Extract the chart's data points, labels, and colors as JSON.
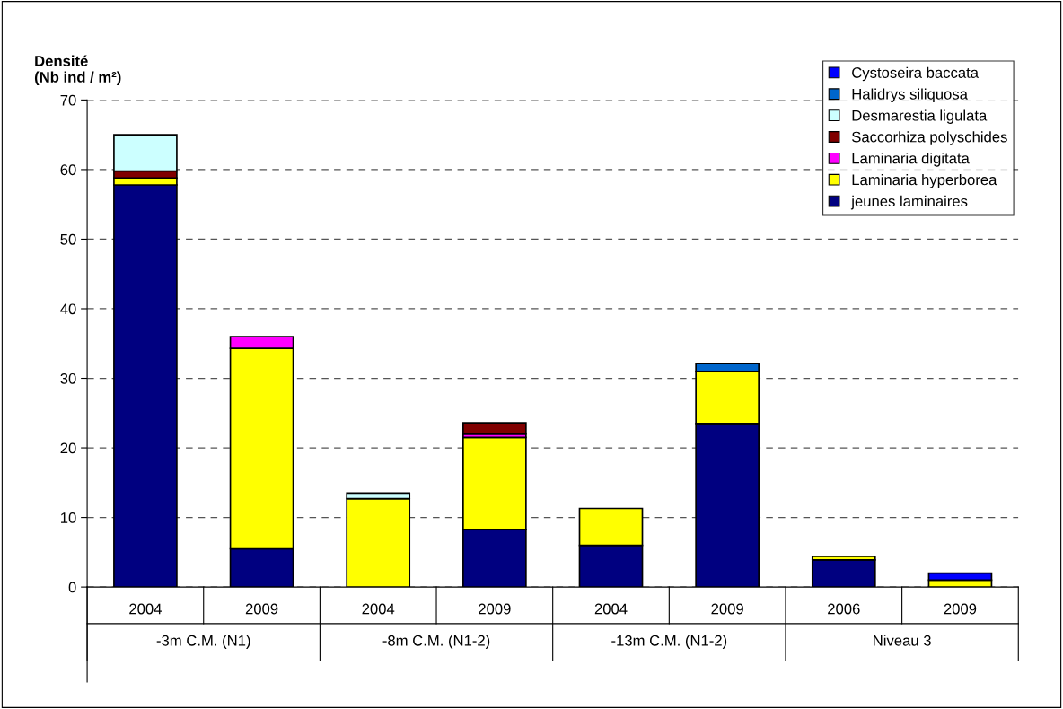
{
  "chart_data": {
    "type": "bar",
    "stacked": true,
    "ylabel": "Densité\n(Nb ind / m²)",
    "categories": [
      "2004",
      "2009",
      "2004",
      "2009",
      "2004",
      "2009",
      "2006",
      "2009"
    ],
    "annotations": [
      "-3m C.M. (N1)",
      "-8m C.M. (N1-2)",
      "-13m C.M. (N1-2)",
      "Niveau 3"
    ],
    "series": [
      {
        "name": "jeunes laminaires",
        "color": "#000080",
        "values": [
          57.8,
          5.5,
          0,
          8.3,
          6,
          23.5,
          3.9,
          0
        ]
      },
      {
        "name": "Laminaria hyperborea",
        "color": "#ffff00",
        "values": [
          1,
          28.8,
          12.7,
          13.2,
          5.3,
          7.5,
          0.5,
          1
        ]
      },
      {
        "name": "Laminaria digitata",
        "color": "#ff00ff",
        "values": [
          0,
          1.7,
          0,
          0.5,
          0,
          0,
          0,
          0
        ]
      },
      {
        "name": "Saccorhiza polyschides",
        "color": "#800000",
        "values": [
          1,
          0,
          0,
          1.6,
          0,
          0,
          0,
          0
        ]
      },
      {
        "name": "Desmarestia ligulata",
        "color": "#ccffff",
        "values": [
          5.2,
          0,
          0.8,
          0,
          0,
          0,
          0,
          0
        ]
      },
      {
        "name": "Halidrys siliquosa",
        "color": "#0066cc",
        "values": [
          0,
          0,
          0,
          0,
          0,
          1.1,
          0,
          0
        ]
      },
      {
        "name": "Cystoseira baccata",
        "color": "#0000ff",
        "values": [
          0,
          0,
          0,
          0,
          0,
          0,
          0,
          1
        ]
      }
    ],
    "ylim": [
      0,
      70
    ],
    "yticks": [
      0,
      10,
      20,
      30,
      40,
      50,
      60,
      70
    ],
    "grid": "y",
    "legend": "top right"
  }
}
